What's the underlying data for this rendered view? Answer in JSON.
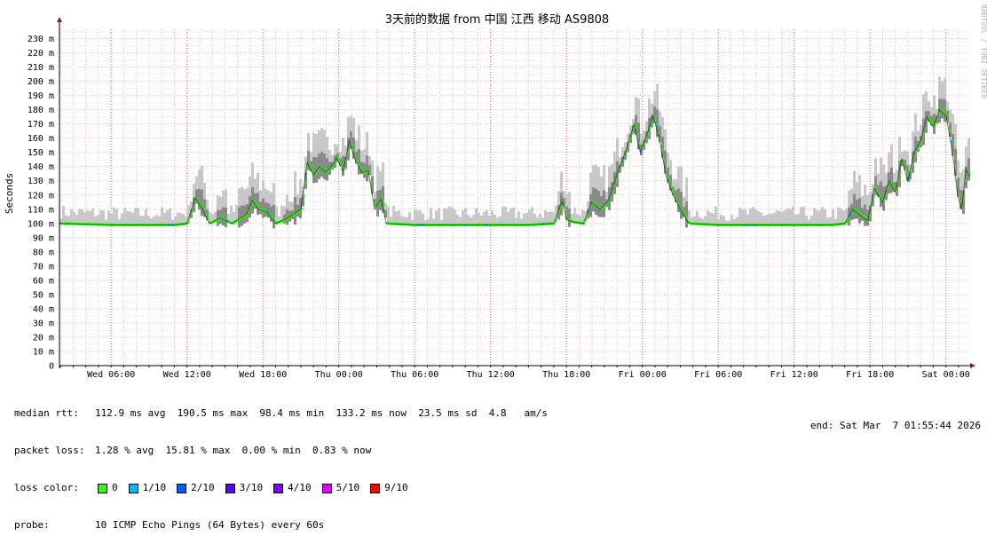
{
  "title": "3天前的数据 from 中国 江西 移动 AS9808",
  "watermark": "RRDTOOL / TOBI OETIKER",
  "colors": {
    "grid_minor": "#f0b8b8",
    "grid_major": "#d06060",
    "smoke": "#c8c8c8",
    "smoke_dark": "#8a8a8a",
    "median_line": "#000000",
    "axis_arrow": "#8b1a1a"
  },
  "chart_data": {
    "type": "line",
    "title": "3天前的数据 from 中国 江西 移动 AS9808",
    "ylabel": "Seconds",
    "ylim": [
      0,
      240
    ],
    "y_unit": "ms",
    "yticks": [
      "0",
      "10 m",
      "20 m",
      "30 m",
      "40 m",
      "50 m",
      "60 m",
      "70 m",
      "80 m",
      "90 m",
      "100 m",
      "110 m",
      "120 m",
      "130 m",
      "140 m",
      "150 m",
      "160 m",
      "170 m",
      "180 m",
      "190 m",
      "200 m",
      "210 m",
      "220 m",
      "230 m"
    ],
    "xlim": [
      "2026-03-04T01:55",
      "2026-03-07T01:55"
    ],
    "xticks": [
      {
        "label": "Wed 06:00",
        "t": "2026-03-04T06:00"
      },
      {
        "label": "Wed 12:00",
        "t": "2026-03-04T12:00"
      },
      {
        "label": "Wed 18:00",
        "t": "2026-03-04T18:00"
      },
      {
        "label": "Thu 00:00",
        "t": "2026-03-05T00:00"
      },
      {
        "label": "Thu 06:00",
        "t": "2026-03-05T06:00"
      },
      {
        "label": "Thu 12:00",
        "t": "2026-03-05T12:00"
      },
      {
        "label": "Thu 18:00",
        "t": "2026-03-05T18:00"
      },
      {
        "label": "Fri 00:00",
        "t": "2026-03-06T00:00"
      },
      {
        "label": "Fri 06:00",
        "t": "2026-03-06T06:00"
      },
      {
        "label": "Fri 12:00",
        "t": "2026-03-06T12:00"
      },
      {
        "label": "Fri 18:00",
        "t": "2026-03-06T18:00"
      },
      {
        "label": "Sat 00:00",
        "t": "2026-03-07T00:00"
      }
    ],
    "grid": true,
    "series": [
      {
        "name": "median rtt",
        "points": [
          [
            "2026-03-04T01:55",
            100
          ],
          [
            "2026-03-04T06:00",
            99
          ],
          [
            "2026-03-04T09:00",
            99
          ],
          [
            "2026-03-04T11:00",
            99
          ],
          [
            "2026-03-04T12:00",
            100
          ],
          [
            "2026-03-04T12:40",
            118
          ],
          [
            "2026-03-04T13:15",
            110
          ],
          [
            "2026-03-04T13:45",
            100
          ],
          [
            "2026-03-04T14:40",
            104
          ],
          [
            "2026-03-04T15:30",
            100
          ],
          [
            "2026-03-04T16:40",
            106
          ],
          [
            "2026-03-04T17:10",
            116
          ],
          [
            "2026-03-04T17:40",
            110
          ],
          [
            "2026-03-04T18:20",
            108
          ],
          [
            "2026-03-04T19:00",
            100
          ],
          [
            "2026-03-04T20:00",
            104
          ],
          [
            "2026-03-04T21:00",
            110
          ],
          [
            "2026-03-04T21:30",
            143
          ],
          [
            "2026-03-04T22:00",
            134
          ],
          [
            "2026-03-04T22:30",
            140
          ],
          [
            "2026-03-04T23:00",
            136
          ],
          [
            "2026-03-04T23:30",
            141
          ],
          [
            "2026-03-04T23:50",
            146
          ],
          [
            "2026-03-05T00:20",
            137
          ],
          [
            "2026-03-05T00:50",
            158
          ],
          [
            "2026-03-05T01:20",
            144
          ],
          [
            "2026-03-05T01:50",
            136
          ],
          [
            "2026-03-05T02:20",
            137
          ],
          [
            "2026-03-05T02:50",
            110
          ],
          [
            "2026-03-05T03:20",
            117
          ],
          [
            "2026-03-05T03:45",
            100
          ],
          [
            "2026-03-05T06:00",
            99
          ],
          [
            "2026-03-05T12:00",
            99
          ],
          [
            "2026-03-05T15:00",
            99
          ],
          [
            "2026-03-05T17:00",
            100
          ],
          [
            "2026-03-05T17:40",
            116
          ],
          [
            "2026-03-05T18:00",
            103
          ],
          [
            "2026-03-05T18:30",
            101
          ],
          [
            "2026-03-05T19:20",
            100
          ],
          [
            "2026-03-05T20:00",
            115
          ],
          [
            "2026-03-05T20:40",
            110
          ],
          [
            "2026-03-05T21:20",
            116
          ],
          [
            "2026-03-05T22:00",
            135
          ],
          [
            "2026-03-05T22:40",
            150
          ],
          [
            "2026-03-05T23:20",
            170
          ],
          [
            "2026-03-05T23:50",
            150
          ],
          [
            "2026-03-06T00:20",
            162
          ],
          [
            "2026-03-06T00:50",
            176
          ],
          [
            "2026-03-06T01:20",
            160
          ],
          [
            "2026-03-06T01:50",
            135
          ],
          [
            "2026-03-06T02:20",
            122
          ],
          [
            "2026-03-06T03:00",
            110
          ],
          [
            "2026-03-06T03:40",
            100
          ],
          [
            "2026-03-06T06:00",
            99
          ],
          [
            "2026-03-06T12:00",
            99
          ],
          [
            "2026-03-06T15:00",
            99
          ],
          [
            "2026-03-06T16:00",
            100
          ],
          [
            "2026-03-06T16:40",
            110
          ],
          [
            "2026-03-06T17:20",
            105
          ],
          [
            "2026-03-06T17:50",
            102
          ],
          [
            "2026-03-06T18:20",
            125
          ],
          [
            "2026-03-06T19:00",
            115
          ],
          [
            "2026-03-06T19:30",
            130
          ],
          [
            "2026-03-06T20:00",
            122
          ],
          [
            "2026-03-06T20:30",
            145
          ],
          [
            "2026-03-06T21:00",
            130
          ],
          [
            "2026-03-06T21:30",
            150
          ],
          [
            "2026-03-06T22:00",
            158
          ],
          [
            "2026-03-06T22:30",
            175
          ],
          [
            "2026-03-06T23:00",
            168
          ],
          [
            "2026-03-06T23:30",
            180
          ],
          [
            "2026-03-07T00:00",
            176
          ],
          [
            "2026-03-07T00:20",
            160
          ],
          [
            "2026-03-07T00:40",
            140
          ],
          [
            "2026-03-07T00:55",
            120
          ],
          [
            "2026-03-07T01:15",
            110
          ],
          [
            "2026-03-07T01:35",
            138
          ],
          [
            "2026-03-07T01:55",
            133
          ]
        ]
      }
    ]
  },
  "stats": {
    "median_rtt_label": "median rtt:",
    "median_rtt_value": "112.9 ms avg  190.5 ms max  98.4 ms min  133.2 ms now  23.5 ms sd  4.8   am/s",
    "packet_loss_label": "packet loss:",
    "packet_loss_value": "1.28 % avg  15.81 % max  0.00 % min  0.83 % now",
    "loss_color_label": "loss color:",
    "loss_colors": [
      {
        "label": "0",
        "color": "#26ff00"
      },
      {
        "label": "1/10",
        "color": "#00b8ff"
      },
      {
        "label": "2/10",
        "color": "#0059ff"
      },
      {
        "label": "3/10",
        "color": "#5e00ff"
      },
      {
        "label": "4/10",
        "color": "#7e00ff"
      },
      {
        "label": "5/10",
        "color": "#dd00ff"
      },
      {
        "label": "9/10",
        "color": "#ff0000"
      }
    ],
    "probe_label": "probe:",
    "probe_value": "10 ICMP Echo Pings (64 Bytes) every 60s",
    "end_text": "end: Sat Mar  7 01:55:44 2026"
  }
}
